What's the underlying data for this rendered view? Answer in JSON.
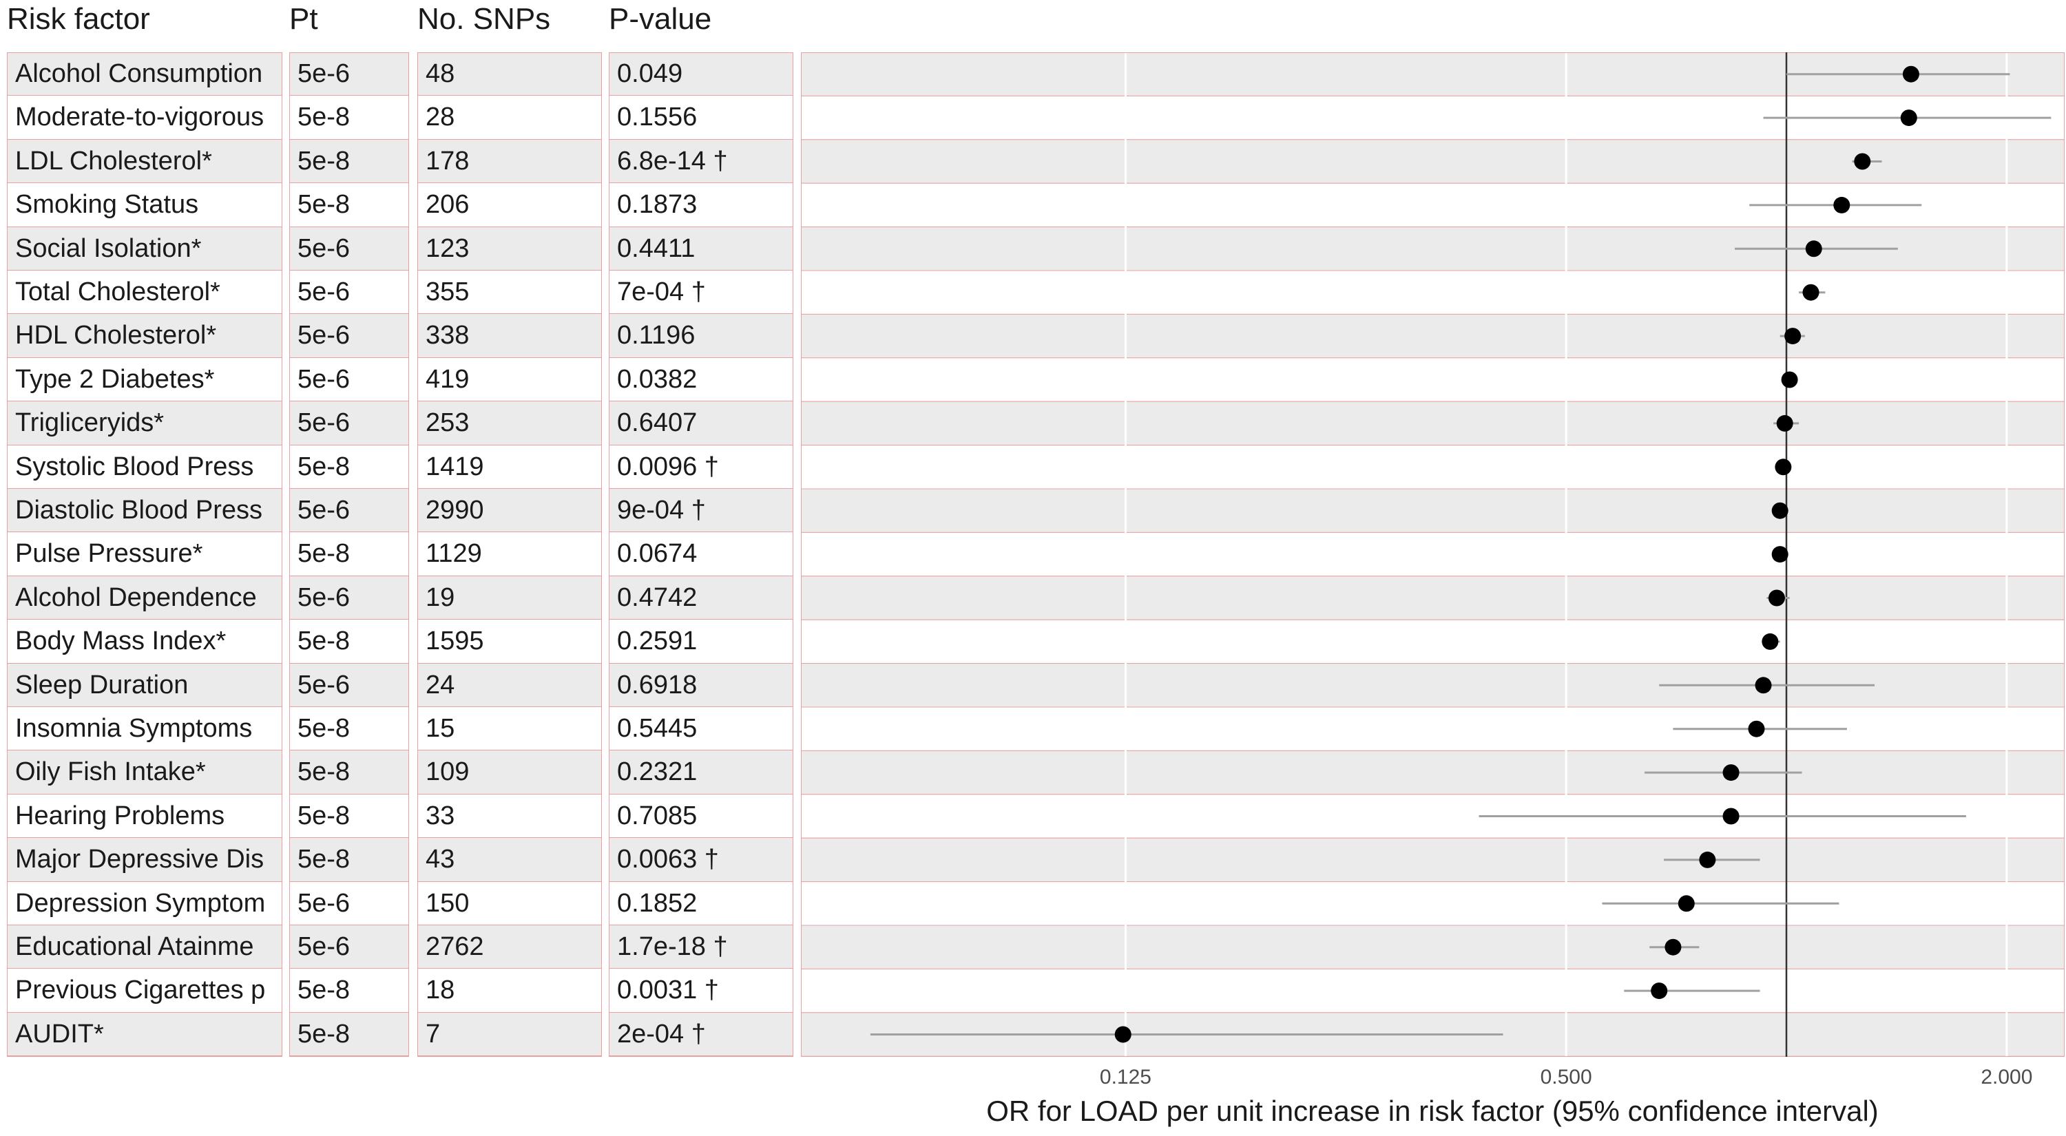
{
  "headers": {
    "risk_factor": "Risk factor",
    "pt": "Pt",
    "snps": "No. SNPs",
    "pvalue": "P-value"
  },
  "rows": [
    {
      "name": "Alcohol Consumption",
      "pt": "5e-6",
      "snps": "48",
      "p": "0.049"
    },
    {
      "name": "Moderate-to-vigorous",
      "pt": "5e-8",
      "snps": "28",
      "p": "0.1556"
    },
    {
      "name": "LDL Cholesterol*",
      "pt": "5e-8",
      "snps": "178",
      "p": "6.8e-14 †"
    },
    {
      "name": "Smoking Status",
      "pt": "5e-8",
      "snps": "206",
      "p": "0.1873"
    },
    {
      "name": "Social Isolation*",
      "pt": "5e-6",
      "snps": "123",
      "p": "0.4411"
    },
    {
      "name": "Total Cholesterol*",
      "pt": "5e-6",
      "snps": "355",
      "p": "7e-04 †"
    },
    {
      "name": "HDL Cholesterol*",
      "pt": "5e-6",
      "snps": "338",
      "p": "0.1196"
    },
    {
      "name": "Type 2 Diabetes*",
      "pt": "5e-6",
      "snps": "419",
      "p": "0.0382"
    },
    {
      "name": "Trigliceryids*",
      "pt": "5e-6",
      "snps": "253",
      "p": "0.6407"
    },
    {
      "name": "Systolic Blood Press",
      "pt": "5e-8",
      "snps": "1419",
      "p": "0.0096 †"
    },
    {
      "name": "Diastolic Blood Press",
      "pt": "5e-6",
      "snps": "2990",
      "p": "9e-04 †"
    },
    {
      "name": "Pulse Pressure*",
      "pt": "5e-8",
      "snps": "1129",
      "p": "0.0674"
    },
    {
      "name": "Alcohol Dependence",
      "pt": "5e-6",
      "snps": "19",
      "p": "0.4742"
    },
    {
      "name": "Body Mass Index*",
      "pt": "5e-8",
      "snps": "1595",
      "p": "0.2591"
    },
    {
      "name": "Sleep Duration",
      "pt": "5e-6",
      "snps": "24",
      "p": "0.6918"
    },
    {
      "name": "Insomnia Symptoms",
      "pt": "5e-8",
      "snps": "15",
      "p": "0.5445"
    },
    {
      "name": "Oily Fish Intake*",
      "pt": "5e-8",
      "snps": "109",
      "p": "0.2321"
    },
    {
      "name": "Hearing Problems",
      "pt": "5e-8",
      "snps": "33",
      "p": "0.7085"
    },
    {
      "name": "Major Depressive Dis",
      "pt": "5e-8",
      "snps": "43",
      "p": "0.0063 †"
    },
    {
      "name": "Depression Symptom",
      "pt": "5e-6",
      "snps": "150",
      "p": "0.1852"
    },
    {
      "name": "Educational Atainme",
      "pt": "5e-6",
      "snps": "2762",
      "p": "1.7e-18 †"
    },
    {
      "name": "Previous Cigarettes p",
      "pt": "5e-8",
      "snps": "18",
      "p": "0.0031 †"
    },
    {
      "name": "AUDIT*",
      "pt": "5e-8",
      "snps": "7",
      "p": "2e-04 †"
    }
  ],
  "chart_data": {
    "type": "scatter",
    "xlabel": "OR for LOAD per unit increase in risk factor (95% confidence interval)",
    "x_scale": "log2",
    "xlim": [
      0.045,
      2.4
    ],
    "xticks": [
      0.125,
      0.5,
      2.0
    ],
    "xtick_labels": [
      "0.125",
      "0.500",
      "2.000"
    ],
    "reference_line": 1.0,
    "colors": {
      "point": "#000000",
      "ci": "#a0a0a0",
      "ref": "#333333",
      "shade": "#ebebeb",
      "border": "#e8a0a0"
    },
    "categories": [
      "Alcohol Consumption",
      "Moderate-to-vigorous",
      "LDL Cholesterol*",
      "Smoking Status",
      "Social Isolation*",
      "Total Cholesterol*",
      "HDL Cholesterol*",
      "Type 2 Diabetes*",
      "Trigliceryids*",
      "Systolic Blood Press",
      "Diastolic Blood Press",
      "Pulse Pressure*",
      "Alcohol Dependence",
      "Body Mass Index*",
      "Sleep Duration",
      "Insomnia Symptoms",
      "Oily Fish Intake*",
      "Hearing Problems",
      "Major Depressive Dis",
      "Depression Symptom",
      "Educational Atainme",
      "Previous Cigarettes p",
      "AUDIT*"
    ],
    "or": [
      1.48,
      1.47,
      1.27,
      1.19,
      1.09,
      1.08,
      1.02,
      1.01,
      0.995,
      0.99,
      0.98,
      0.98,
      0.97,
      0.95,
      0.93,
      0.91,
      0.84,
      0.84,
      0.78,
      0.73,
      0.7,
      0.67,
      0.124
    ],
    "lower": [
      1.0,
      0.93,
      1.23,
      0.89,
      0.85,
      1.04,
      0.98,
      0.99,
      0.96,
      0.98,
      0.97,
      0.97,
      0.94,
      0.93,
      0.67,
      0.7,
      0.64,
      0.38,
      0.68,
      0.56,
      0.65,
      0.6,
      0.056
    ],
    "upper": [
      2.02,
      2.3,
      1.35,
      1.53,
      1.42,
      1.13,
      1.06,
      1.03,
      1.04,
      1.0,
      0.99,
      0.99,
      1.01,
      0.98,
      1.32,
      1.21,
      1.05,
      1.76,
      0.92,
      1.18,
      0.76,
      0.92,
      0.41
    ]
  }
}
